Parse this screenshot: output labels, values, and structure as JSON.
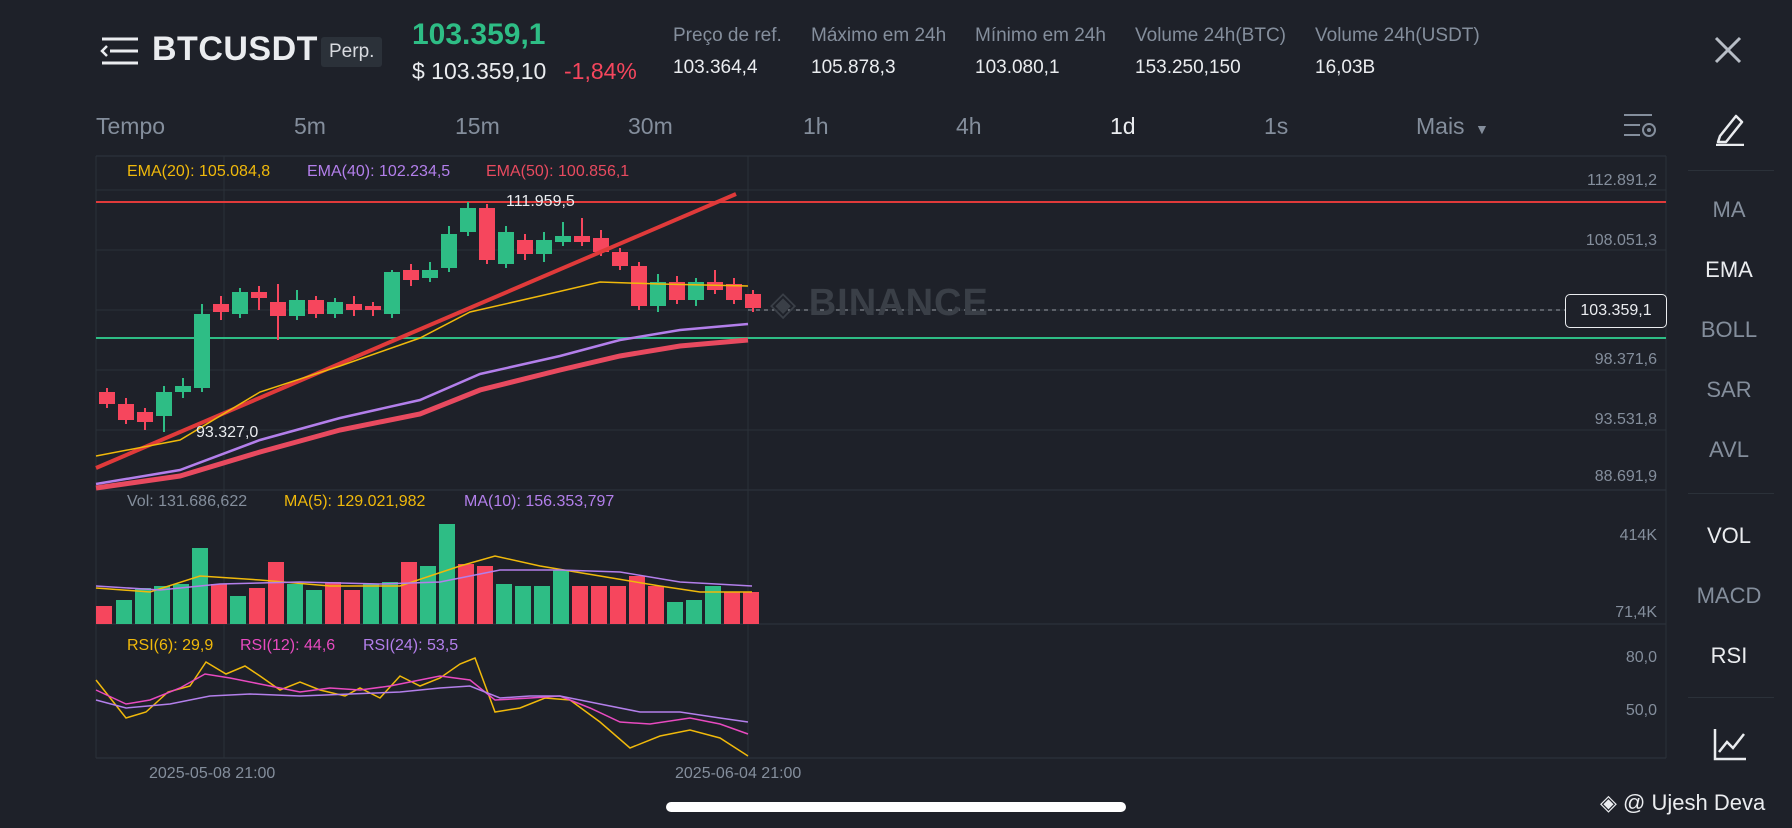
{
  "header": {
    "symbol": "BTCUSDT",
    "contract_tag": "Perp.",
    "last_price": "103.359,1",
    "usd_price": "$ 103.359,10",
    "change_pct": "-1,84%",
    "stats": [
      {
        "label": "Preço de ref.",
        "value": "103.364,4"
      },
      {
        "label": "Máximo em 24h",
        "value": "105.878,3"
      },
      {
        "label": "Mínimo em 24h",
        "value": "103.080,1"
      },
      {
        "label": "Volume 24h(BTC)",
        "value": "153.250,150"
      },
      {
        "label": "Volume 24h(USDT)",
        "value": "16,03B"
      }
    ]
  },
  "timeframes": {
    "label": "Tempo",
    "items": [
      "5m",
      "15m",
      "30m",
      "1h",
      "4h",
      "1d",
      "1s"
    ],
    "active": "1d",
    "more": "Mais"
  },
  "sidebar": {
    "indicators": [
      "MA",
      "EMA",
      "BOLL",
      "SAR",
      "AVL"
    ],
    "sub_indicators": [
      "VOL",
      "MACD",
      "RSI"
    ],
    "active": [
      "EMA",
      "VOL",
      "RSI"
    ]
  },
  "main_panel": {
    "legend": [
      {
        "label": "EMA(20): 105.084,8",
        "color": "#f0b90b"
      },
      {
        "label": "EMA(40): 102.234,5",
        "color": "#b37feb"
      },
      {
        "label": "EMA(50): 100.856,1",
        "color": "#e84a5f"
      }
    ],
    "price_axis": [
      "112.891,2",
      "108.051,3",
      "98.371,6",
      "93.531,8",
      "88.691,9"
    ],
    "current_price": "103.359,1",
    "high_marker": "111.959,5",
    "low_marker": "93.327,0",
    "watermark": "BINANCE"
  },
  "volume_panel": {
    "legend": [
      {
        "label": "Vol: 131.686,622",
        "color": "#848e9c"
      },
      {
        "label": "MA(5): 129.021,982",
        "color": "#f0b90b"
      },
      {
        "label": "MA(10): 156.353,797",
        "color": "#b37feb"
      }
    ],
    "axis": [
      "414K",
      "71,4K"
    ]
  },
  "rsi_panel": {
    "legend": [
      {
        "label": "RSI(6): 29,9",
        "color": "#f0b90b"
      },
      {
        "label": "RSI(12): 44,6",
        "color": "#e84ac0"
      },
      {
        "label": "RSI(24): 53,5",
        "color": "#b37feb"
      }
    ],
    "axis": [
      "80,0",
      "50,0"
    ]
  },
  "dates": [
    "2025-05-08 21:00",
    "2025-06-04 21:00"
  ],
  "credit": "@ Ujesh Deva",
  "colors": {
    "up": "#2ebd85",
    "down": "#f6465d",
    "bg": "#1e2129",
    "grid": "#2b3139"
  }
}
